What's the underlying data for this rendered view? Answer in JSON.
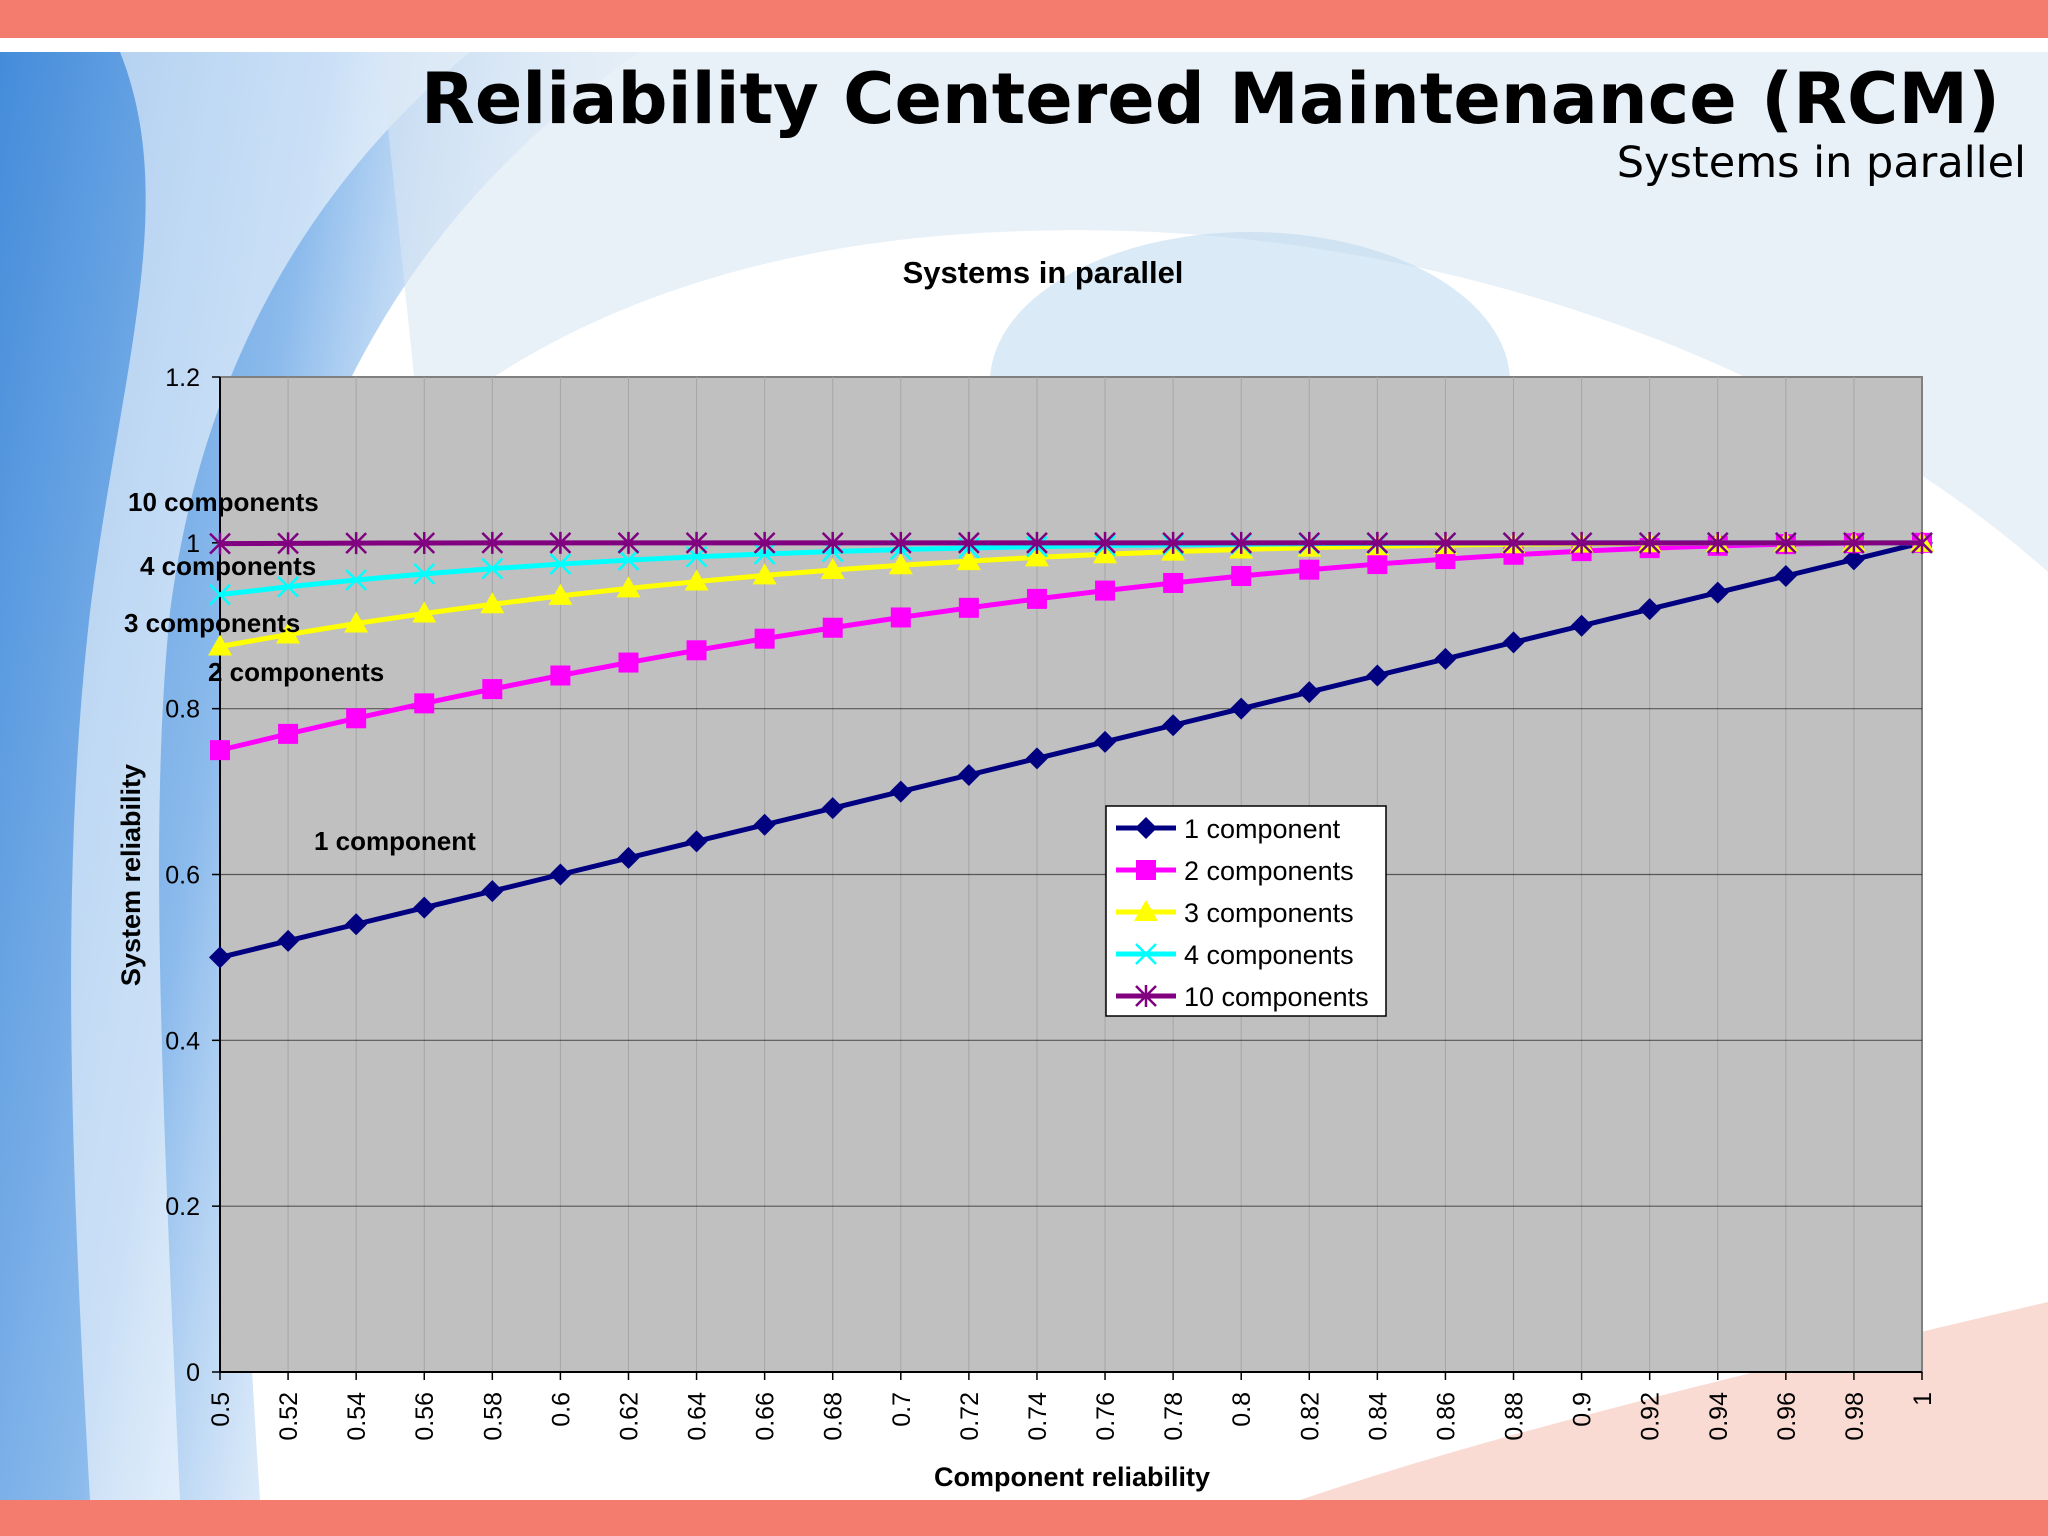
{
  "slide": {
    "title": "Reliability Centered Maintenance (RCM)",
    "subtitle": "Systems in parallel"
  },
  "colors": {
    "band": "#f47c6e",
    "plot_area": "#c0c0c0"
  },
  "chart_data": {
    "type": "line",
    "title": "Systems in parallel",
    "xlabel": "Component reliability",
    "ylabel": "System reliability",
    "ylim": [
      0,
      1.2
    ],
    "yticks": [
      "0",
      "0.2",
      "0.4",
      "0.6",
      "0.8",
      "1",
      "1.2"
    ],
    "grid": true,
    "legend_position": "center-right",
    "categories": [
      "0.5",
      "0.52",
      "0.54",
      "0.56",
      "0.58",
      "0.6",
      "0.62",
      "0.64",
      "0.66",
      "0.68",
      "0.7",
      "0.72",
      "0.74",
      "0.76",
      "0.78",
      "0.8",
      "0.82",
      "0.84",
      "0.86",
      "0.88",
      "0.9",
      "0.92",
      "0.94",
      "0.96",
      "0.98",
      "1"
    ],
    "series": [
      {
        "name": "1 component",
        "color": "#000080",
        "marker": "diamond",
        "values": [
          0.5,
          0.52,
          0.54,
          0.56,
          0.58,
          0.6,
          0.62,
          0.64,
          0.66,
          0.68,
          0.7,
          0.72,
          0.74,
          0.76,
          0.78,
          0.8,
          0.82,
          0.84,
          0.86,
          0.88,
          0.9,
          0.92,
          0.94,
          0.96,
          0.98,
          1
        ]
      },
      {
        "name": "2 components",
        "color": "#ff00ff",
        "marker": "square",
        "values": [
          0.75,
          0.7696,
          0.7884,
          0.8064,
          0.8236,
          0.84,
          0.8556,
          0.8704,
          0.8844,
          0.8976,
          0.91,
          0.9216,
          0.9324,
          0.9424,
          0.9516,
          0.96,
          0.9676,
          0.9744,
          0.9804,
          0.9856,
          0.99,
          0.9936,
          0.9964,
          0.9984,
          0.9996,
          1
        ]
      },
      {
        "name": "3 components",
        "color": "#ffff00",
        "marker": "triangle",
        "values": [
          0.875,
          0.8894,
          0.9027,
          0.9148,
          0.9259,
          0.936,
          0.9451,
          0.9533,
          0.9607,
          0.9672,
          0.973,
          0.978,
          0.9824,
          0.9862,
          0.9894,
          0.992,
          0.9942,
          0.9959,
          0.9973,
          0.9983,
          0.999,
          0.9995,
          0.9998,
          0.9999,
          1,
          1
        ]
      },
      {
        "name": "4 components",
        "color": "#00ffff",
        "marker": "x",
        "values": [
          0.9375,
          0.947,
          0.9552,
          0.9625,
          0.9689,
          0.9744,
          0.9792,
          0.9832,
          0.9866,
          0.9895,
          0.9919,
          0.9938,
          0.9954,
          0.9967,
          0.9977,
          0.9984,
          0.999,
          0.9993,
          0.9996,
          0.9998,
          0.9999,
          1,
          1,
          1,
          1,
          1
        ]
      },
      {
        "name": "10 components",
        "color": "#800080",
        "marker": "star",
        "values": [
          0.999,
          0.9994,
          0.9997,
          0.9998,
          0.9999,
          0.9999,
          1,
          1,
          1,
          1,
          1,
          1,
          1,
          1,
          1,
          1,
          1,
          1,
          1,
          1,
          1,
          1,
          1,
          1,
          1,
          1
        ]
      }
    ],
    "annotations": [
      {
        "text": "10 components"
      },
      {
        "text": "4 components"
      },
      {
        "text": "3 components"
      },
      {
        "text": "2 components"
      },
      {
        "text": "1 component"
      }
    ]
  }
}
